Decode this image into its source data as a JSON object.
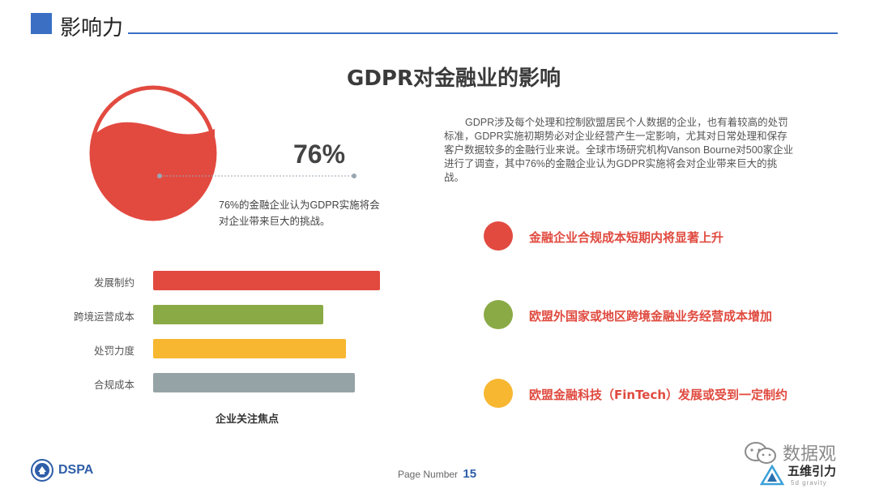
{
  "header": {
    "title": "影响力"
  },
  "main_title": "GDPR对金融业的影响",
  "highlight": {
    "percent": "76%",
    "value": 0.76,
    "caption": "76%的金融企业认为GDPR实施将会对企业带来巨大的挑战。",
    "color": "#e24a40"
  },
  "description": "GDPR涉及每个处理和控制欧盟居民个人数据的企业，也有着较高的处罚标准，GDPR实施初期势必对企业经营产生一定影响，尤其对日常处理和保存客户数据较多的金融行业来说。全球市场研究机构Vanson Bourne对500家企业进行了调查，其中76%的金融企业认为GDPR实施将会对企业带来巨大的挑战。",
  "bullets": [
    {
      "text": "金融企业合规成本短期内将显著上升",
      "color": "#e24a40"
    },
    {
      "text": "欧盟外国家或地区跨境金融业务经营成本增加",
      "color": "#8aaa46"
    },
    {
      "text": "欧盟金融科技（FinTech）发展或受到一定制约",
      "color": "#f7b731"
    }
  ],
  "bars": {
    "caption": "企业关注焦点",
    "items": [
      {
        "label": "发展制约",
        "value": 1.0,
        "color": "#e24a40"
      },
      {
        "label": "跨境运营成本",
        "value": 0.75,
        "color": "#8aaa46"
      },
      {
        "label": "处罚力度",
        "value": 0.85,
        "color": "#f7b731"
      },
      {
        "label": "合规成本",
        "value": 0.89,
        "color": "#95a3a6"
      }
    ]
  },
  "footer": {
    "org": "DSPA",
    "page_label": "Page Number",
    "page_number": "15"
  },
  "watermark": {
    "wechat_name": "数据观",
    "brand": "五维引力",
    "brand_sub": "5d gravity"
  }
}
